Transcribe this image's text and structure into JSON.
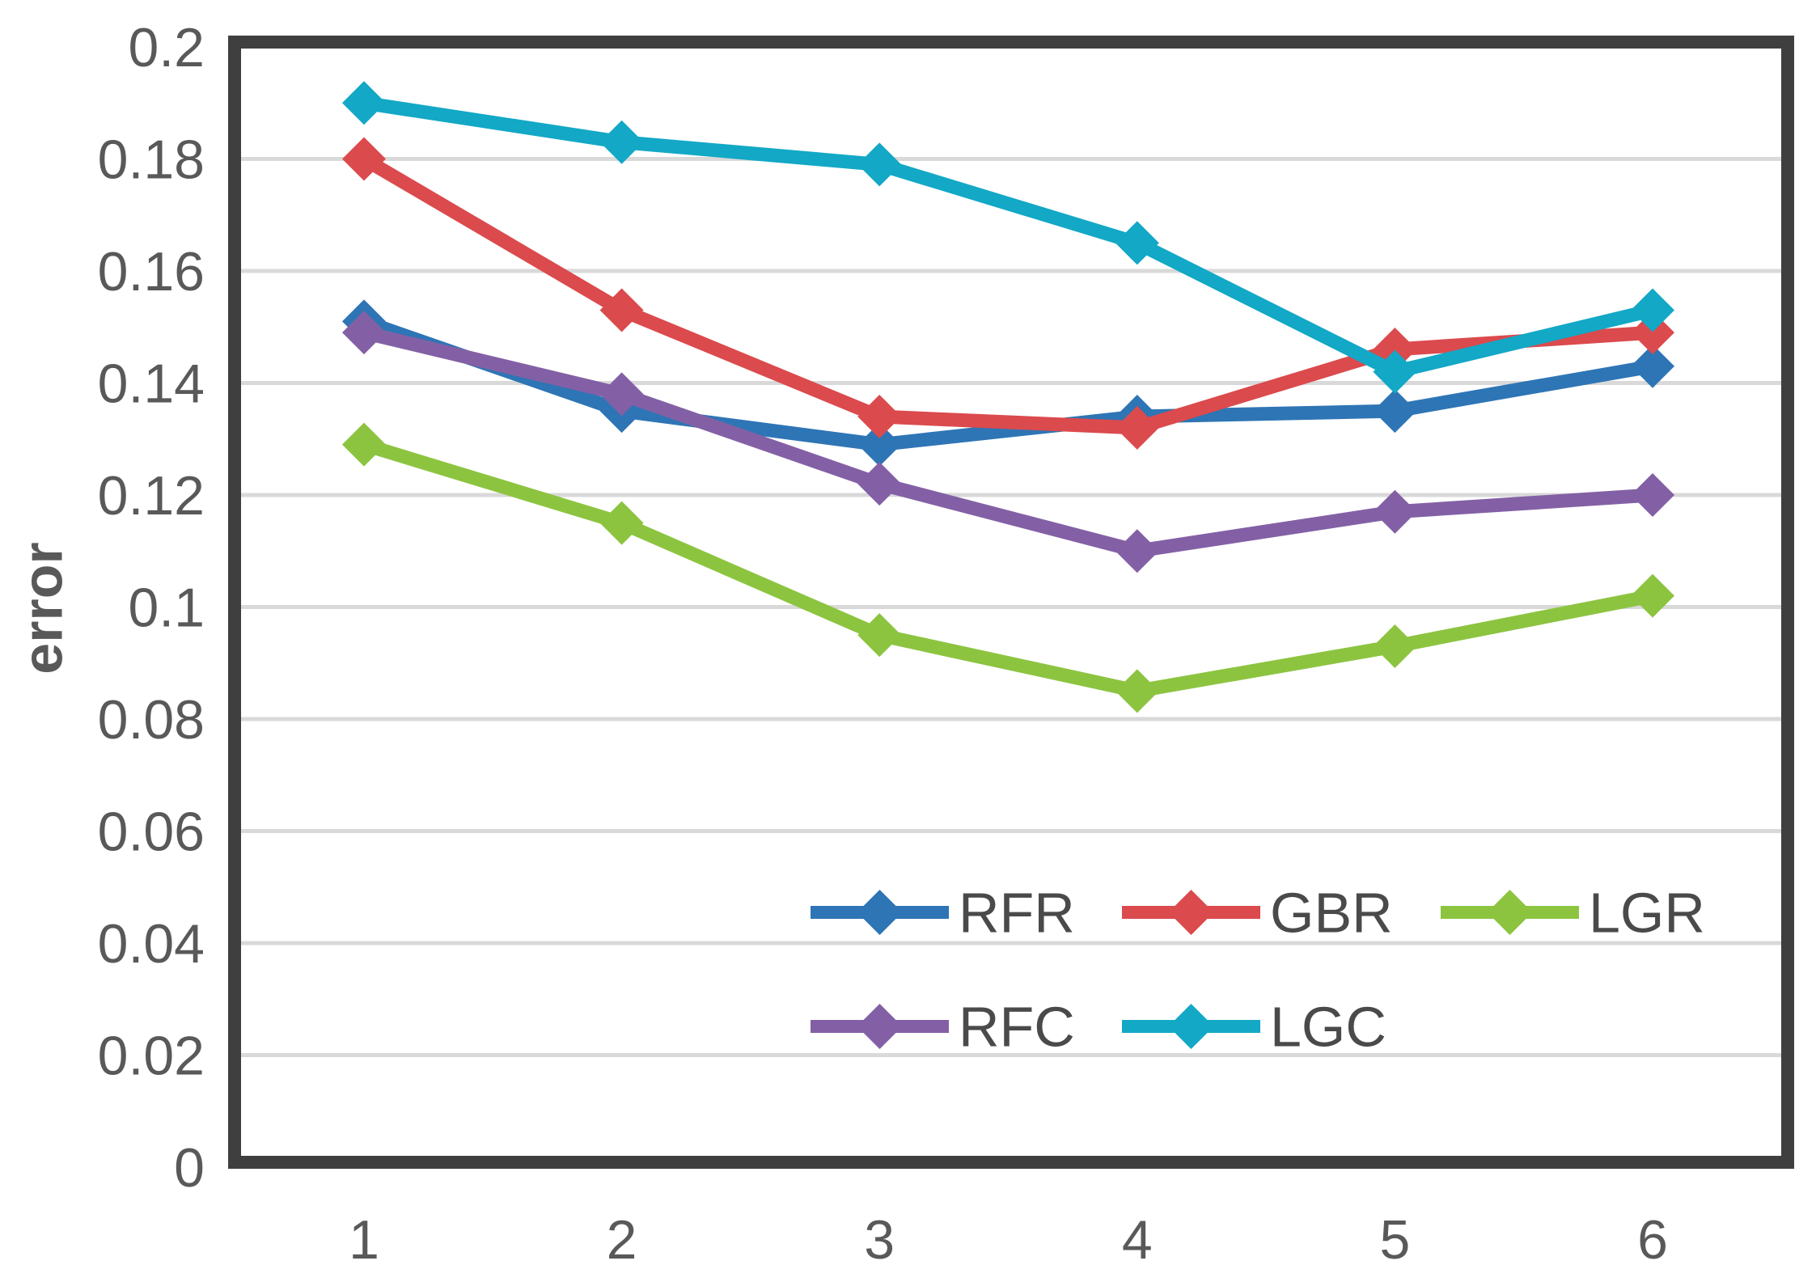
{
  "figure": {
    "background": "#FFFFFF"
  },
  "chart_data": {
    "type": "line",
    "title": "",
    "xlabel": "",
    "ylabel": "error",
    "x": [
      1,
      2,
      3,
      4,
      5,
      6
    ],
    "xtick_labels": [
      "1",
      "2",
      "3",
      "4",
      "5",
      "6"
    ],
    "ylim": [
      0,
      0.2
    ],
    "yticks": [
      0,
      0.02,
      0.04,
      0.06,
      0.08,
      0.1,
      0.12,
      0.14,
      0.16,
      0.18,
      0.2
    ],
    "ytick_labels": [
      "0",
      "0.02",
      "0.04",
      "0.06",
      "0.08",
      "0.1",
      "0.12",
      "0.14",
      "0.16",
      "0.18",
      "0.2"
    ],
    "grid": "horizontal",
    "marker": "diamond",
    "series": [
      {
        "name": "RFR",
        "color": "#2E75B5",
        "values": [
          0.151,
          0.135,
          0.129,
          0.134,
          0.135,
          0.143
        ]
      },
      {
        "name": "GBR",
        "color": "#DB4A4D",
        "values": [
          0.18,
          0.153,
          0.134,
          0.132,
          0.146,
          0.149
        ]
      },
      {
        "name": "LGR",
        "color": "#8CC440",
        "values": [
          0.129,
          0.115,
          0.095,
          0.085,
          0.093,
          0.102
        ]
      },
      {
        "name": "RFC",
        "color": "#8360A5",
        "values": [
          0.149,
          0.138,
          0.122,
          0.11,
          0.117,
          0.12
        ]
      },
      {
        "name": "LGC",
        "color": "#12A8C6",
        "values": [
          0.19,
          0.183,
          0.179,
          0.165,
          0.142,
          0.153
        ]
      }
    ],
    "legend": {
      "position": "inside-bottom",
      "rows": [
        [
          "RFR",
          "GBR",
          "LGR"
        ],
        [
          "RFC",
          "LGC"
        ]
      ]
    },
    "style": {
      "axis_border_color": "#3F3F3F",
      "gridline_color": "#D9D9D9",
      "tick_label_color": "#595959",
      "legend_text_color": "#4A4A4A"
    }
  }
}
